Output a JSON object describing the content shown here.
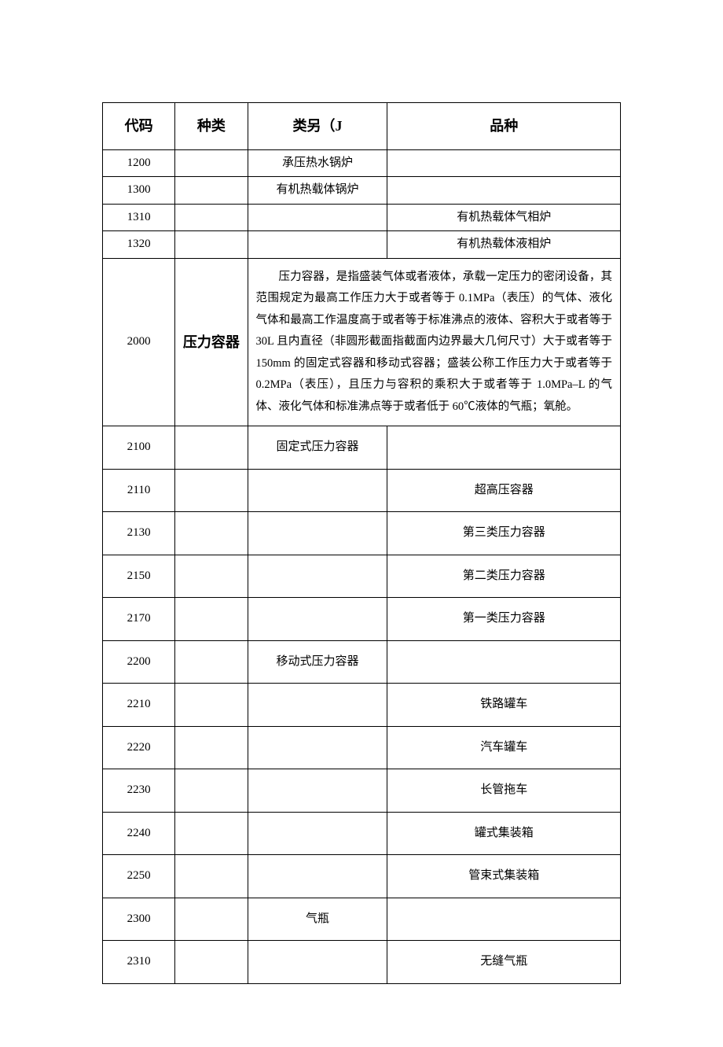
{
  "table": {
    "headers": {
      "code": "代码",
      "kind": "种类",
      "category": "类另（J",
      "variety": "品种"
    },
    "rows": [
      {
        "code": "1200",
        "category": "承压热水锅炉",
        "row_class": "compact"
      },
      {
        "code": "1300",
        "category": "有机热载体锅炉",
        "row_class": "compact"
      },
      {
        "code": "1310",
        "variety": "有机热载体气相炉",
        "row_class": "compact"
      },
      {
        "code": "1320",
        "variety": "有机热载体液相炉",
        "row_class": "compact"
      },
      {
        "code": "2000",
        "kind": "压力容器",
        "desc": "压力容器，是指盛装气体或者液体，承载一定压力的密闭设备，其范围规定为最高工作压力大于或者等于 0.1MPa（表压）的气体、液化气体和最高工作温度高于或者等于标准沸点的液体、容积大于或者等于 30L 且内直径（非圆形截面指截面内边界最大几何尺寸）大于或者等于 150mm 的固定式容器和移动式容器；盛装公称工作压力大于或者等于 0.2MPa（表压），且压力与容积的乘积大于或者等于 1.0MPa–L 的气体、液化气体和标准沸点等于或者低于 60℃液体的气瓶；氧舱。",
        "row_class": "desc-row"
      },
      {
        "code": "2100",
        "category": "固定式压力容器",
        "row_class": "tall"
      },
      {
        "code": "2110",
        "variety": "超高压容器",
        "row_class": "tall"
      },
      {
        "code": "2130",
        "variety": "第三类压力容器",
        "row_class": "tall"
      },
      {
        "code": "2150",
        "variety": "第二类压力容器",
        "row_class": "tall"
      },
      {
        "code": "2170",
        "variety": "第一类压力容器",
        "row_class": "tall"
      },
      {
        "code": "2200",
        "category": "移动式压力容器",
        "row_class": "tall"
      },
      {
        "code": "2210",
        "variety": "铁路罐车",
        "row_class": "tall"
      },
      {
        "code": "2220",
        "variety": "汽车罐车",
        "row_class": "tall"
      },
      {
        "code": "2230",
        "variety": "长管拖车",
        "row_class": "tall"
      },
      {
        "code": "2240",
        "variety": "罐式集装箱",
        "row_class": "tall"
      },
      {
        "code": "2250",
        "variety": "管束式集装箱",
        "row_class": "tall"
      },
      {
        "code": "2300",
        "category": "气瓶",
        "row_class": "tall"
      },
      {
        "code": "2310",
        "variety": "无缝气瓶",
        "row_class": "tall"
      }
    ]
  }
}
